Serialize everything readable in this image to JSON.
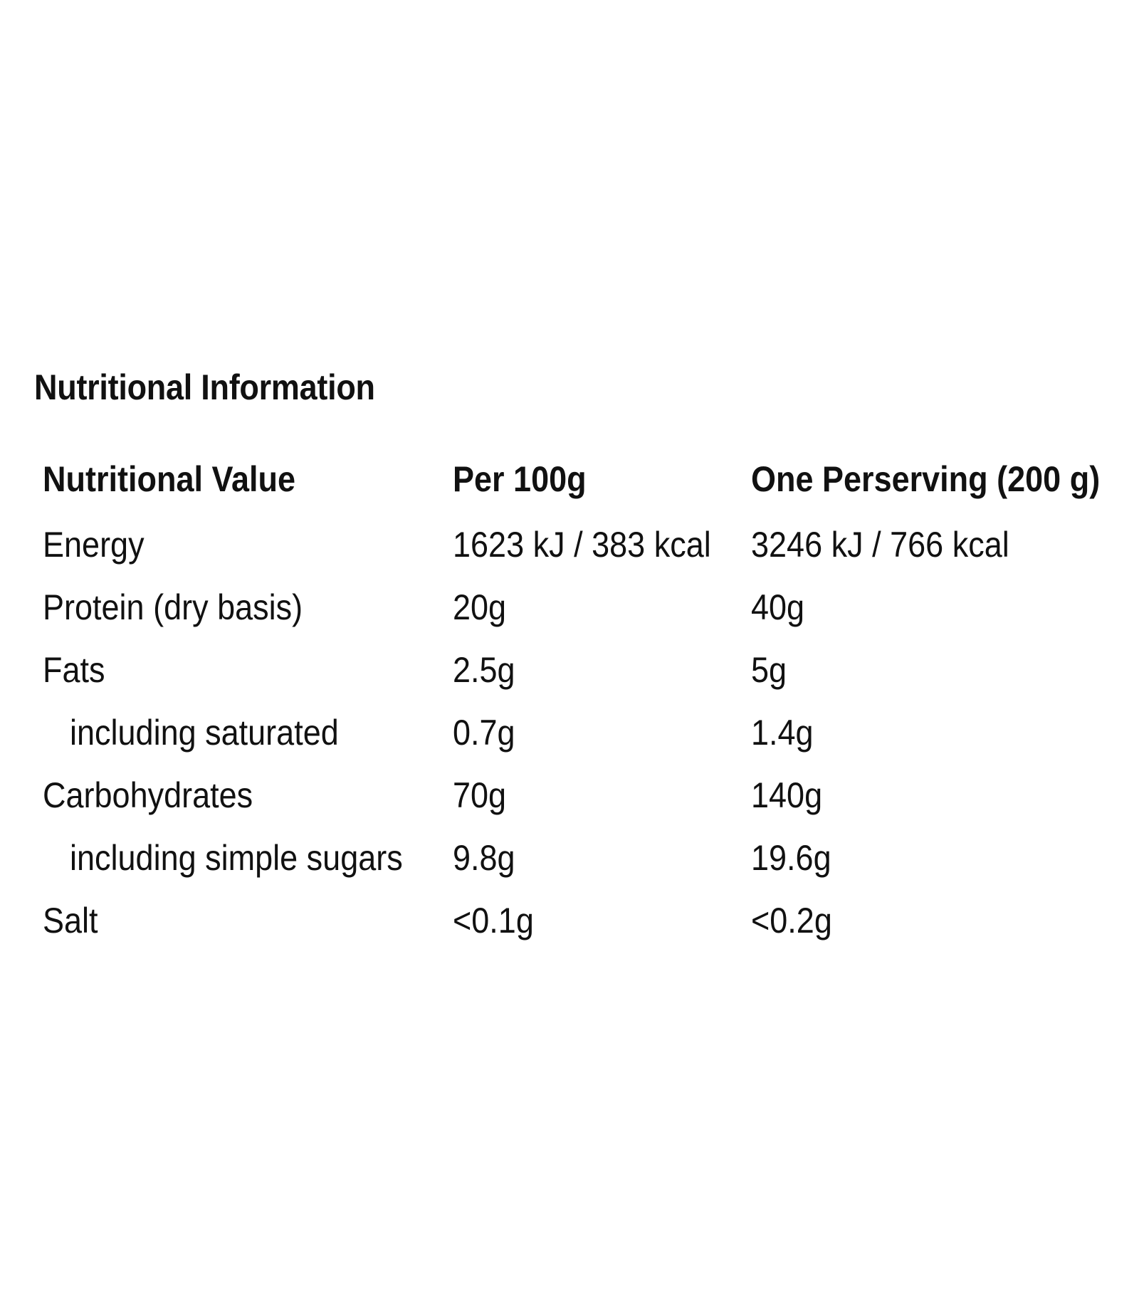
{
  "title": "Nutritional Information",
  "table": {
    "headers": [
      "Nutritional Value",
      "Per 100g",
      "One Perserving (200 g)"
    ],
    "rows": [
      {
        "name": "Energy",
        "per100": "1623 kJ / 383 kcal",
        "perServing": "3246 kJ / 766 kcal"
      },
      {
        "name": "Protein (dry basis)",
        "per100": "20g",
        "perServing": "40g"
      },
      {
        "name": "Fats",
        "per100": "2.5g",
        "perServing": "5g"
      },
      {
        "name": "including saturated",
        "per100": "0.7g",
        "perServing": "1.4g"
      },
      {
        "name": "Carbohydrates",
        "per100": "70g",
        "perServing": "140g"
      },
      {
        "name": "including simple sugars",
        "per100": "9.8g",
        "perServing": "19.6g"
      },
      {
        "name": "Salt",
        "per100": "<0.1g",
        "perServing": "<0.2g"
      }
    ]
  }
}
